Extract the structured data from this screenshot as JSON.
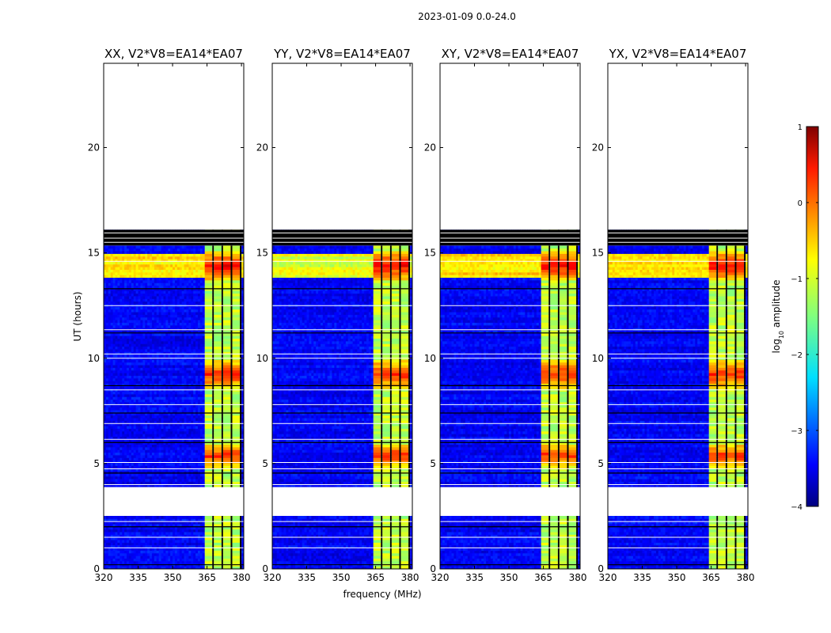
{
  "chart_data": {
    "type": "heatmap",
    "suptitle": "2023-01-09 0.0-24.0",
    "xlabel": "frequency (MHz)",
    "ylabel": "UT (hours)",
    "xlim": [
      320,
      381
    ],
    "ylim": [
      0,
      24
    ],
    "xticks": [
      "320",
      "335",
      "350",
      "365",
      "380"
    ],
    "yticks": [
      "0",
      "5",
      "10",
      "15",
      "20"
    ],
    "panels": [
      {
        "title": "XX, V2*V8=EA14*EA07",
        "variant": 0
      },
      {
        "title": "YY, V2*V8=EA14*EA07",
        "variant": 1
      },
      {
        "title": "XY, V2*V8=EA14*EA07",
        "variant": 2
      },
      {
        "title": "YX, V2*V8=EA14*EA07",
        "variant": 3
      }
    ],
    "data_extent_hours": [
      0,
      16.1
    ],
    "band": {
      "freq_min": 364,
      "freq_max": 380,
      "sub_channels": 4,
      "level_log10": -1.2
    },
    "background_level_log10": -3.4,
    "bright_events": [
      {
        "t_start": 13.8,
        "t_end": 15.0,
        "level_log10": 0.4,
        "broadband_level_log10": -0.8
      },
      {
        "t_start": 8.6,
        "t_end": 9.9,
        "level_log10": 0.2
      },
      {
        "t_start": 4.9,
        "t_end": 5.9,
        "level_log10": 0.2
      }
    ],
    "flagged_hours_blank": [
      [
        2.6,
        3.8
      ],
      [
        15.4,
        15.9
      ]
    ],
    "colorbar": {
      "label": "log₁₀ amplitude",
      "label_base": "log",
      "label_sub": "10",
      "label_rest": " amplitude",
      "range": [
        -4,
        1
      ],
      "ticks": [
        "1",
        "0",
        "−1",
        "−2",
        "−3",
        "−4"
      ],
      "colormap": "jet"
    }
  }
}
